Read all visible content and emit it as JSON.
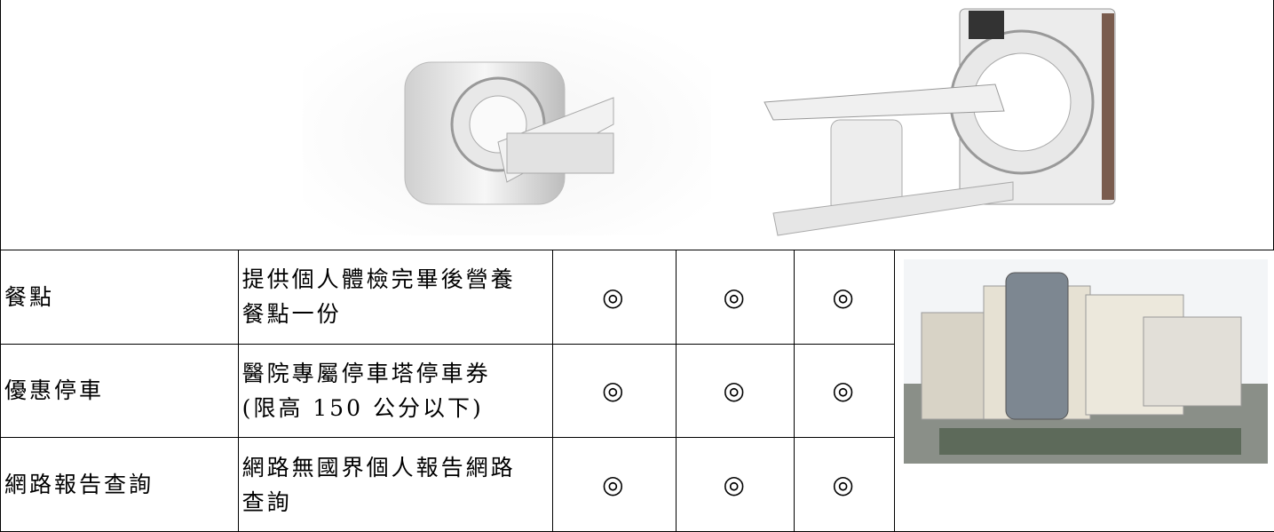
{
  "table": {
    "rows": [
      {
        "item": "餐點",
        "description": [
          "提供個人體檢完畢後營養",
          "餐點一份"
        ],
        "marks": [
          "◎",
          "◎",
          "◎"
        ]
      },
      {
        "item": "優惠停車",
        "description": [
          "醫院專屬停車塔停車券",
          "(限高 150 公分以下)"
        ],
        "marks": [
          "◎",
          "◎",
          "◎"
        ]
      },
      {
        "item": "網路報告查詢",
        "description": [
          "網路無國界個人報告網路",
          "查詢"
        ],
        "marks": [
          "◎",
          "◎",
          "◎"
        ]
      }
    ]
  }
}
